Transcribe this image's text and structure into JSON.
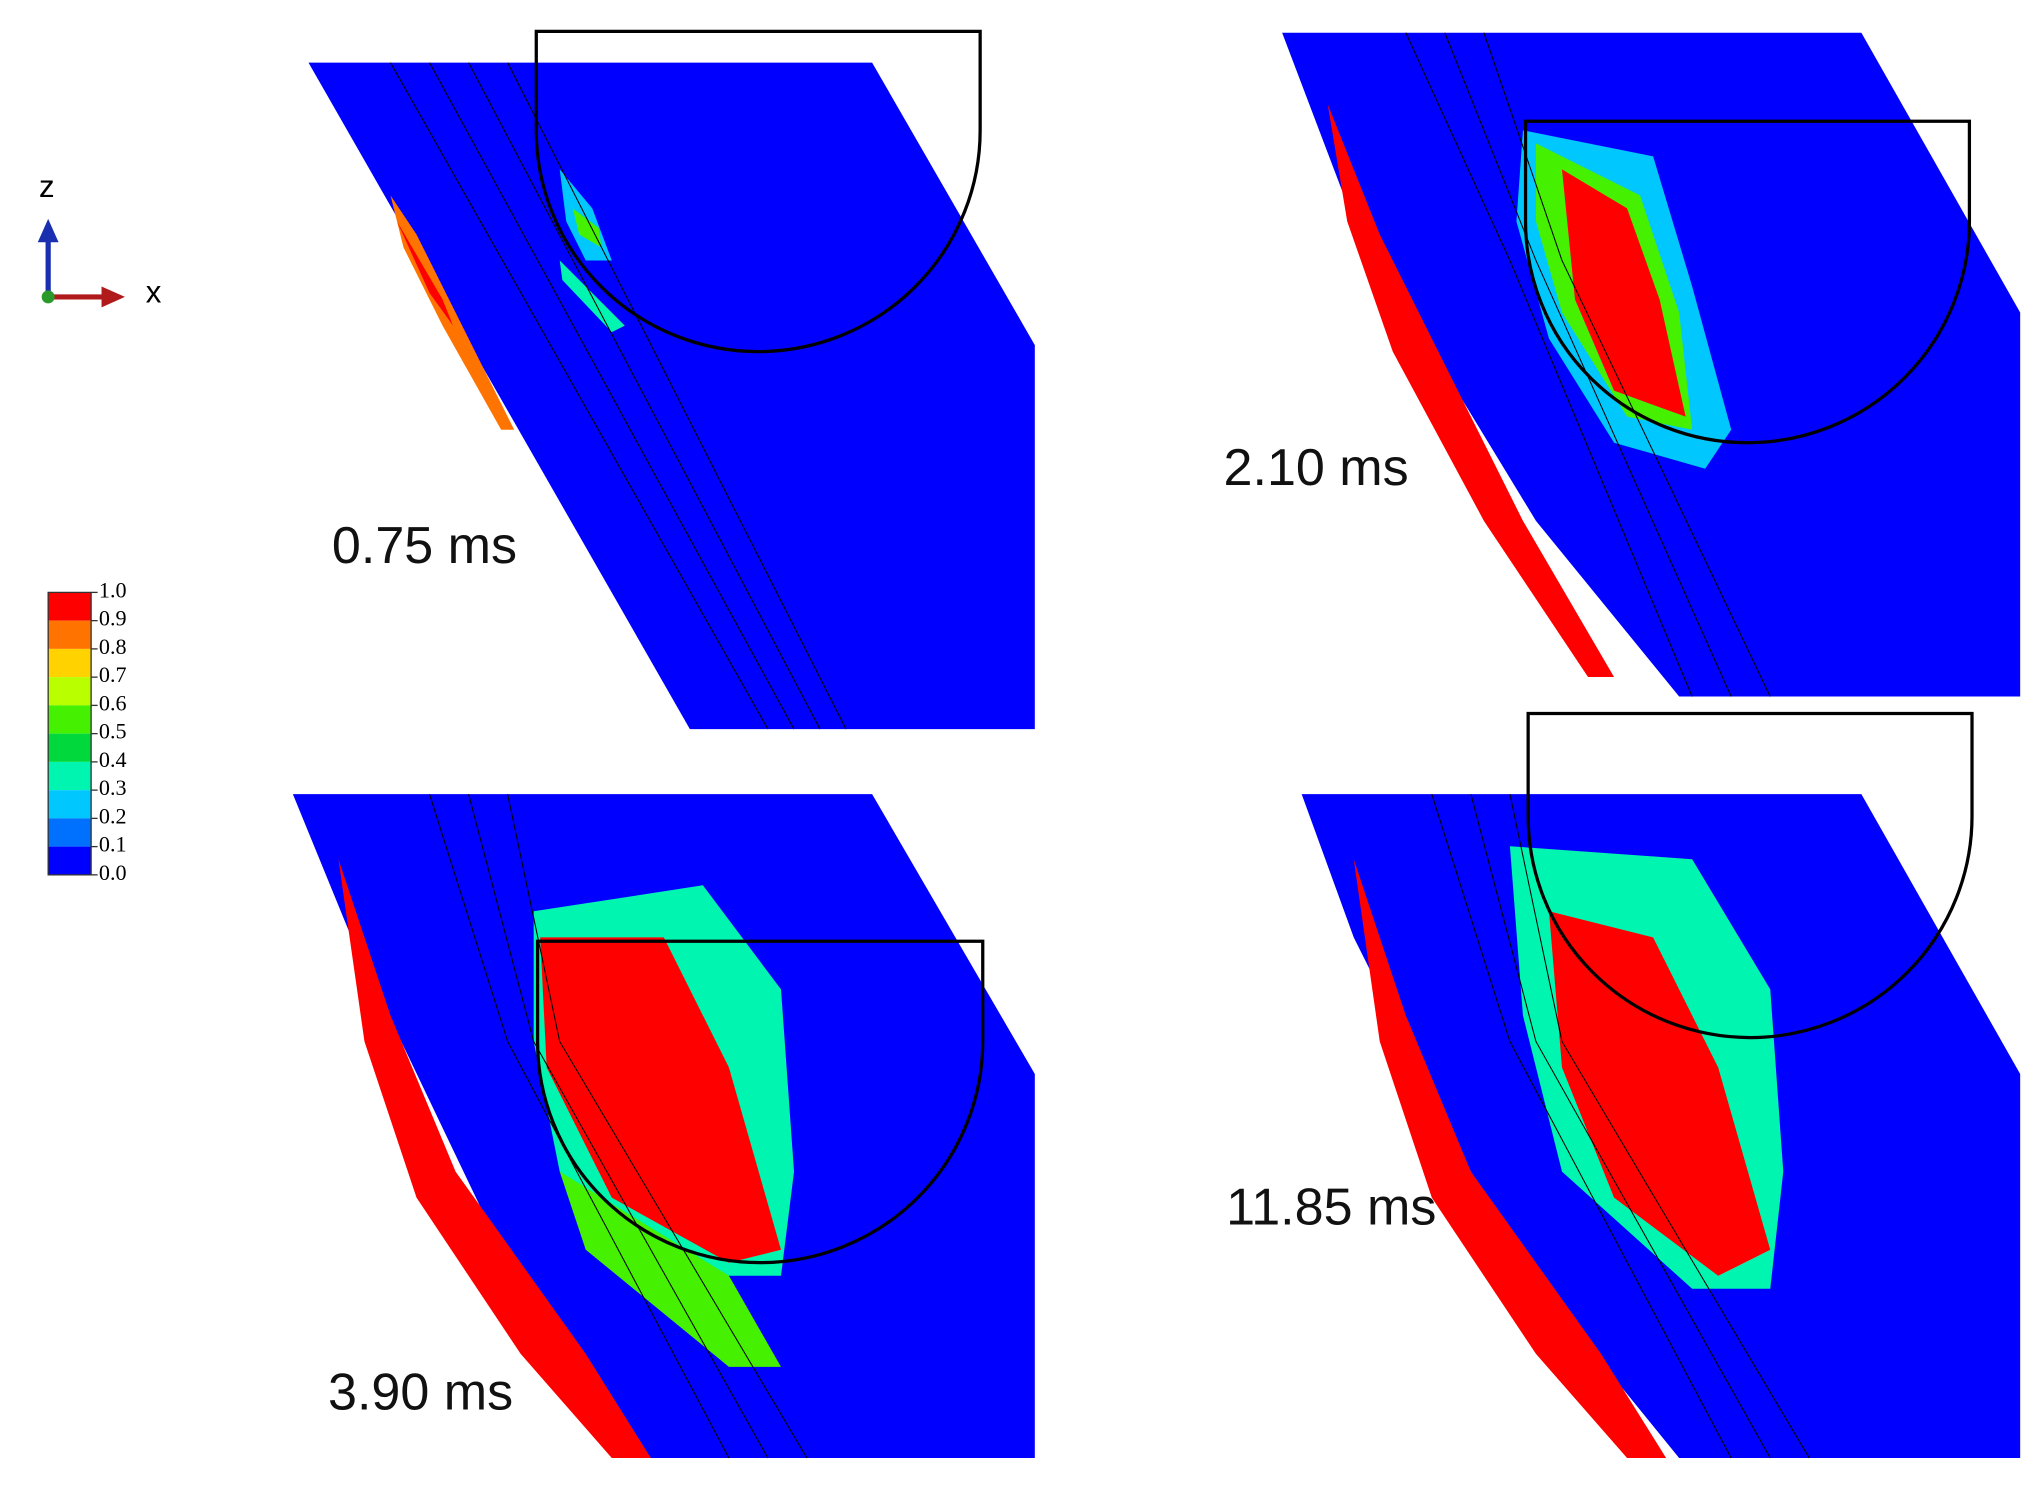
{
  "axes": {
    "z_label": "z",
    "x_label": "x"
  },
  "legend": {
    "ticks": [
      {
        "value": 1,
        "label": "1.0"
      },
      0.9,
      0.8,
      0.7,
      0.6,
      0.5,
      0.4,
      0.3,
      0.2,
      0.1,
      {
        "value": 0,
        "label": "0.0"
      }
    ],
    "colors": [
      "#ff0000",
      "#ff7300",
      "#ffd200",
      "#b9ff00",
      "#45f000",
      "#00d83c",
      "#00f5b0",
      "#00c8ff",
      "#0070ff",
      "#0000ff"
    ]
  },
  "panels": [
    {
      "label": "0.75 ms"
    },
    {
      "label": "2.10 ms"
    },
    {
      "label": "3.90 ms"
    },
    {
      "label": "11.85 ms"
    }
  ]
}
